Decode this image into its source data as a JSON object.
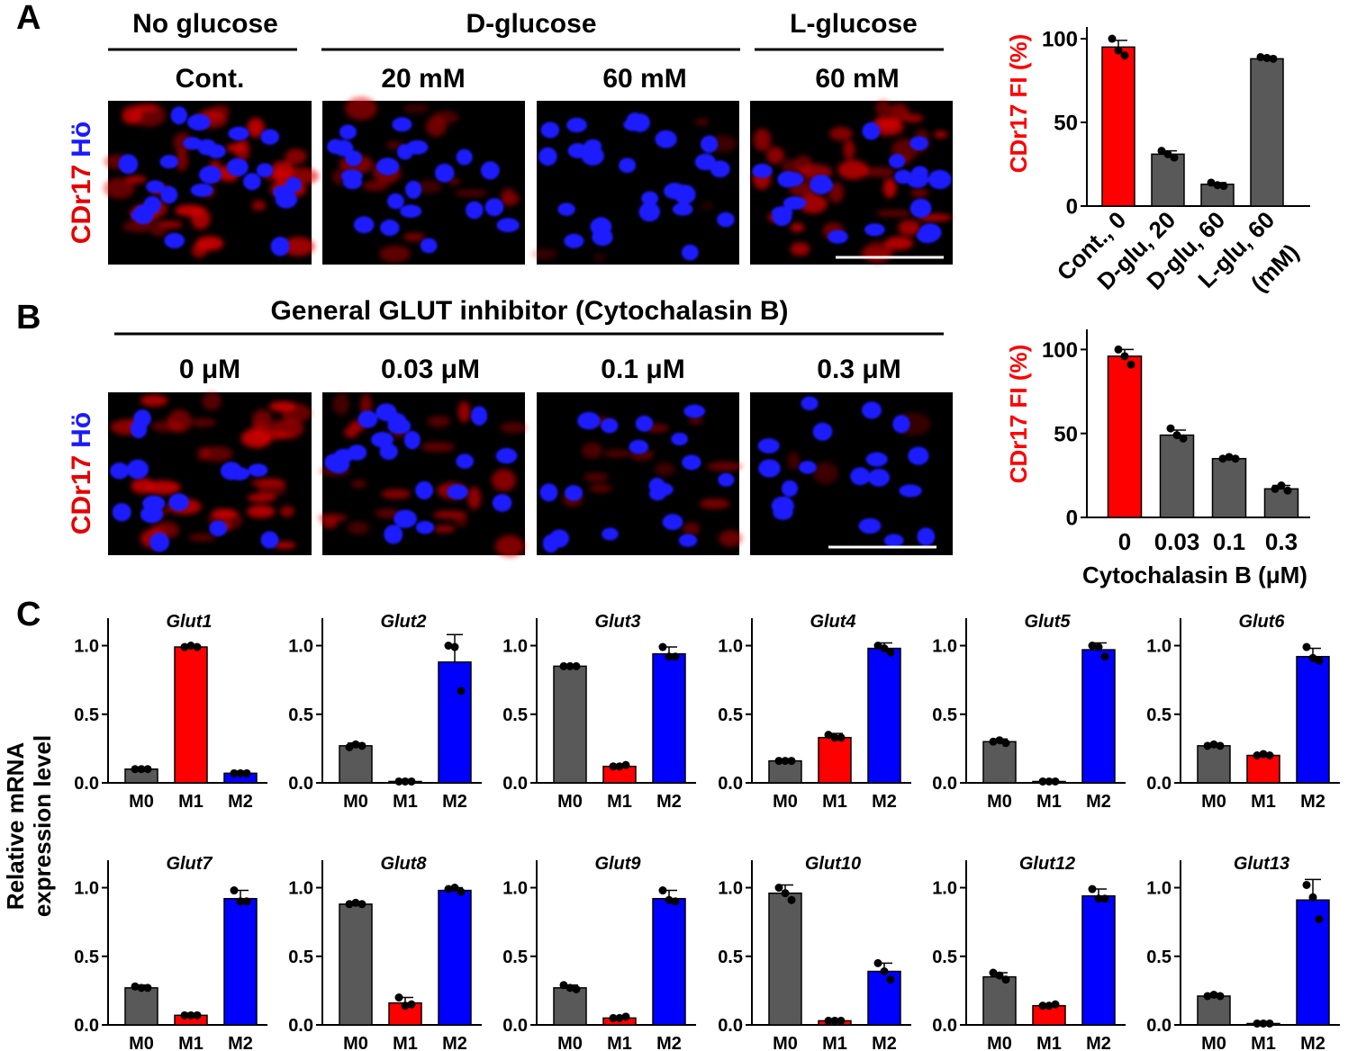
{
  "figure": {
    "panels": {
      "a": "A",
      "b": "B",
      "c": "C"
    },
    "stain": {
      "marker": "CDr17",
      "nucleus": "Hö"
    },
    "colors": {
      "red": "#ff0000",
      "blue": "#0000ff",
      "grey": "#595959",
      "marker": "#e60000",
      "nucleus": "#1a1aff",
      "cell_bg": "#000000"
    },
    "panel_a": {
      "groups": [
        "No glucose",
        "D-glucose",
        "L-glucose"
      ],
      "conditions": [
        "Cont.",
        "20 mM",
        "60 mM",
        "60 mM"
      ]
    },
    "panel_b": {
      "title": "General GLUT inhibitor (Cytochalasin B)",
      "conditions": [
        "0 μM",
        "0.03 μM",
        "0.1 μM",
        "0.3 μM"
      ]
    },
    "panel_c": {
      "ylabel_line1": "Relative mRNA",
      "ylabel_line2": "expression level"
    }
  },
  "chart_data": [
    {
      "id": "A-bar",
      "type": "bar",
      "ylabel": "CDr17 FI (%)",
      "yticks": [
        "0",
        "50",
        "100"
      ],
      "ylim": [
        0,
        110
      ],
      "categories": [
        "Cont., 0",
        "D-glu, 20",
        "D-glu, 60",
        "L-glu, 60"
      ],
      "unit_label": "(mM)",
      "values": [
        95,
        31,
        13,
        88
      ],
      "errors": [
        4,
        2,
        1,
        1.5
      ],
      "points": [
        [
          100,
          93,
          90
        ],
        [
          33,
          31,
          29
        ],
        [
          14,
          12.5,
          12
        ],
        [
          89,
          88.5,
          88
        ]
      ],
      "colors": [
        "red",
        "grey",
        "grey",
        "grey"
      ]
    },
    {
      "id": "B-bar",
      "type": "bar",
      "ylabel": "CDr17 FI (%)",
      "yticks": [
        "0",
        "50",
        "100"
      ],
      "ylim": [
        0,
        110
      ],
      "categories": [
        "0",
        "0.03",
        "0.1",
        "0.3"
      ],
      "xlabel": "Cytochalasin B  (μM)",
      "values": [
        96,
        49,
        35,
        17
      ],
      "errors": [
        4,
        3,
        1,
        2
      ],
      "points": [
        [
          100,
          96,
          91
        ],
        [
          53,
          49,
          47
        ],
        [
          35,
          36,
          35
        ],
        [
          17,
          19,
          16
        ]
      ],
      "colors": [
        "red",
        "grey",
        "grey",
        "grey"
      ]
    },
    {
      "id": "C-expression",
      "type": "bar",
      "categories": [
        "M0",
        "M1",
        "M2"
      ],
      "yticks": [
        "0.0",
        "0.5",
        "1.0"
      ],
      "ylim": [
        0,
        1.15
      ],
      "colors": [
        "grey",
        "red",
        "blue"
      ],
      "genes": [
        {
          "name": "Glut1",
          "values": [
            0.1,
            0.99,
            0.07
          ],
          "errors": [
            0.01,
            0.01,
            0.01
          ],
          "points": [
            [
              0.1,
              0.1,
              0.1
            ],
            [
              0.99,
              1.0,
              0.99
            ],
            [
              0.07,
              0.07,
              0.07
            ]
          ]
        },
        {
          "name": "Glut2",
          "values": [
            0.27,
            0.01,
            0.88
          ],
          "errors": [
            0.02,
            0.005,
            0.2
          ],
          "points": [
            [
              0.26,
              0.28,
              0.27
            ],
            [
              0.01,
              0.01,
              0.01
            ],
            [
              1.0,
              0.99,
              0.67
            ]
          ]
        },
        {
          "name": "Glut3",
          "values": [
            0.85,
            0.12,
            0.94
          ],
          "errors": [
            0.01,
            0.01,
            0.05
          ],
          "points": [
            [
              0.85,
              0.85,
              0.85
            ],
            [
              0.12,
              0.12,
              0.13
            ],
            [
              0.99,
              0.92,
              0.92
            ]
          ]
        },
        {
          "name": "Glut4",
          "values": [
            0.16,
            0.33,
            0.98
          ],
          "errors": [
            0.01,
            0.03,
            0.04
          ],
          "points": [
            [
              0.16,
              0.16,
              0.16
            ],
            [
              0.35,
              0.33,
              0.33
            ],
            [
              1.0,
              0.98,
              0.95
            ]
          ]
        },
        {
          "name": "Glut5",
          "values": [
            0.3,
            0.01,
            0.97
          ],
          "errors": [
            0.02,
            0.005,
            0.05
          ],
          "points": [
            [
              0.3,
              0.31,
              0.29
            ],
            [
              0.01,
              0.01,
              0.01
            ],
            [
              1.0,
              0.99,
              0.92
            ]
          ]
        },
        {
          "name": "Glut6",
          "values": [
            0.27,
            0.2,
            0.92
          ],
          "errors": [
            0.01,
            0.01,
            0.06
          ],
          "points": [
            [
              0.27,
              0.28,
              0.27
            ],
            [
              0.2,
              0.21,
              0.2
            ],
            [
              0.99,
              0.91,
              0.89
            ]
          ]
        },
        {
          "name": "Glut7",
          "values": [
            0.27,
            0.07,
            0.92
          ],
          "errors": [
            0.02,
            0.01,
            0.06
          ],
          "points": [
            [
              0.28,
              0.27,
              0.27
            ],
            [
              0.07,
              0.07,
              0.07
            ],
            [
              0.98,
              0.9,
              0.9
            ]
          ]
        },
        {
          "name": "Glut8",
          "values": [
            0.88,
            0.16,
            0.98
          ],
          "errors": [
            0.01,
            0.04,
            0.02
          ],
          "points": [
            [
              0.88,
              0.89,
              0.88
            ],
            [
              0.2,
              0.14,
              0.15
            ],
            [
              0.99,
              1.0,
              0.97
            ]
          ]
        },
        {
          "name": "Glut9",
          "values": [
            0.27,
            0.05,
            0.92
          ],
          "errors": [
            0.02,
            0.01,
            0.06
          ],
          "points": [
            [
              0.29,
              0.27,
              0.26
            ],
            [
              0.05,
              0.05,
              0.06
            ],
            [
              0.98,
              0.91,
              0.9
            ]
          ]
        },
        {
          "name": "Glut10",
          "values": [
            0.96,
            0.03,
            0.39
          ],
          "errors": [
            0.06,
            0.005,
            0.06
          ],
          "points": [
            [
              1.0,
              0.96,
              0.91
            ],
            [
              0.03,
              0.03,
              0.03
            ],
            [
              0.45,
              0.39,
              0.33
            ]
          ]
        },
        {
          "name": "Glut12",
          "values": [
            0.35,
            0.14,
            0.94
          ],
          "errors": [
            0.03,
            0.01,
            0.05
          ],
          "points": [
            [
              0.38,
              0.36,
              0.33
            ],
            [
              0.14,
              0.14,
              0.15
            ],
            [
              0.99,
              0.92,
              0.92
            ]
          ]
        },
        {
          "name": "Glut13",
          "values": [
            0.21,
            0.01,
            0.91
          ],
          "errors": [
            0.01,
            0.005,
            0.15
          ],
          "points": [
            [
              0.21,
              0.22,
              0.21
            ],
            [
              0.01,
              0.01,
              0.01
            ],
            [
              1.02,
              0.93,
              0.77
            ]
          ]
        }
      ]
    }
  ]
}
